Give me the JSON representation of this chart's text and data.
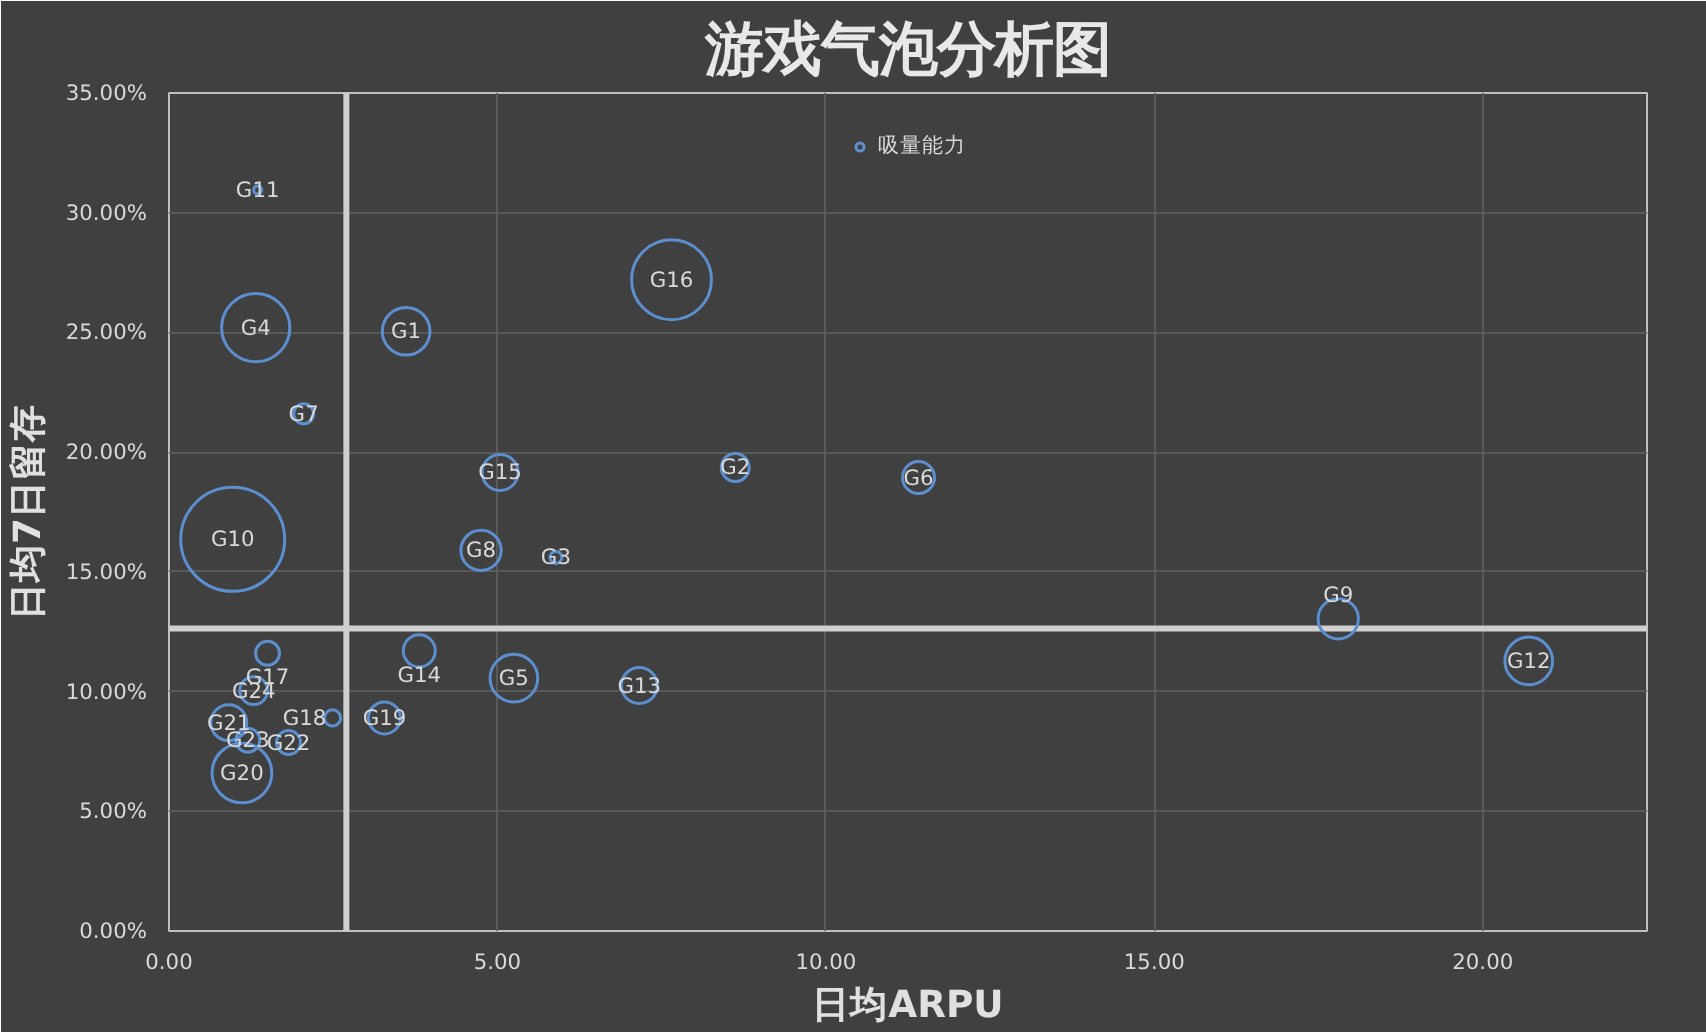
{
  "chart_data": {
    "type": "bubble",
    "title": "游戏气泡分析图",
    "xlabel": "日均ARPU",
    "ylabel": "日均7日留存",
    "series": [
      {
        "name": "吸量能力",
        "color": "#5b8fd0",
        "x": [
          3.61,
          8.62,
          5.89,
          1.32,
          5.25,
          11.41,
          2.05,
          4.75,
          17.8,
          0.97,
          1.35,
          20.7,
          7.16,
          3.81,
          5.04,
          7.65,
          1.5,
          2.49,
          3.28,
          1.11,
          0.91,
          1.82,
          1.2,
          1.29
        ],
        "values": [
          25.05,
          19.36,
          15.6,
          25.2,
          10.56,
          18.94,
          21.6,
          15.9,
          13.04,
          16.36,
          30.95,
          11.28,
          10.25,
          11.7,
          19.15,
          27.2,
          11.6,
          8.9,
          8.9,
          6.6,
          8.7,
          7.87,
          7.97,
          10.04
        ],
        "sizes": [
          0.21,
          0.072,
          0.013,
          0.43,
          0.21,
          0.095,
          0.037,
          0.15,
          0.15,
          1,
          0.006,
          0.21,
          0.12,
          0.095,
          0.12,
          0.59,
          0.053,
          0.024,
          0.095,
          0.33,
          0.12,
          0.053,
          0.053,
          0.072
        ]
      }
    ],
    "annotations": [
      {
        "text": "G1",
        "x": 3.61,
        "y": 25.05
      },
      {
        "text": "G2",
        "x": 8.62,
        "y": 19.36
      },
      {
        "text": "G3",
        "x": 5.89,
        "y": 15.6
      },
      {
        "text": "G4",
        "x": 1.32,
        "y": 25.2
      },
      {
        "text": "G5",
        "x": 5.25,
        "y": 10.56
      },
      {
        "text": "G6",
        "x": 11.41,
        "y": 18.94
      },
      {
        "text": "G7",
        "x": 2.05,
        "y": 21.6
      },
      {
        "text": "G8",
        "x": 4.75,
        "y": 15.9
      },
      {
        "text": "G9",
        "x": 17.8,
        "y": 13.04
      },
      {
        "text": "G10",
        "x": 0.97,
        "y": 16.36
      },
      {
        "text": "G11",
        "x": 1.35,
        "y": 30.95
      },
      {
        "text": "G12",
        "x": 20.7,
        "y": 11.28
      },
      {
        "text": "G13",
        "x": 7.16,
        "y": 10.25
      },
      {
        "text": "G14",
        "x": 3.81,
        "y": 11.7
      },
      {
        "text": "G15",
        "x": 5.04,
        "y": 19.15
      },
      {
        "text": "G16",
        "x": 7.65,
        "y": 27.2
      },
      {
        "text": "G17",
        "x": 1.5,
        "y": 11.6
      },
      {
        "text": "G18",
        "x": 2.49,
        "y": 8.9
      },
      {
        "text": "G19",
        "x": 3.28,
        "y": 8.9
      },
      {
        "text": "G20",
        "x": 1.11,
        "y": 6.6
      },
      {
        "text": "G21",
        "x": 0.91,
        "y": 8.7
      },
      {
        "text": "G22",
        "x": 1.82,
        "y": 7.87
      },
      {
        "text": "G23",
        "x": 1.2,
        "y": 7.97
      },
      {
        "text": "G24",
        "x": 1.29,
        "y": 10.04
      }
    ],
    "xlim": [
      0,
      22.5
    ],
    "ylim": [
      0,
      35
    ],
    "xticks": [
      {
        "value": 0,
        "label": "0.00"
      },
      {
        "value": 5,
        "label": "5.00"
      },
      {
        "value": 10,
        "label": "10.00"
      },
      {
        "value": 15,
        "label": "15.00"
      },
      {
        "value": 20,
        "label": "20.00"
      }
    ],
    "yticks": [
      {
        "value": 0,
        "label": "0.00%"
      },
      {
        "value": 5,
        "label": "5.00%"
      },
      {
        "value": 10,
        "label": "10.00%"
      },
      {
        "value": 15,
        "label": "15.00%"
      },
      {
        "value": 20,
        "label": "20.00%"
      },
      {
        "value": 25,
        "label": "25.00%"
      },
      {
        "value": 30,
        "label": "30.00%"
      },
      {
        "value": 35,
        "label": "35.00%"
      }
    ],
    "ref_lines": [
      {
        "axis": "x",
        "value": 2.7,
        "color": "#d0d0d0"
      },
      {
        "axis": "y",
        "value": 12.63,
        "color": "#d0d0d0"
      }
    ],
    "grid": true,
    "legend": "top"
  }
}
